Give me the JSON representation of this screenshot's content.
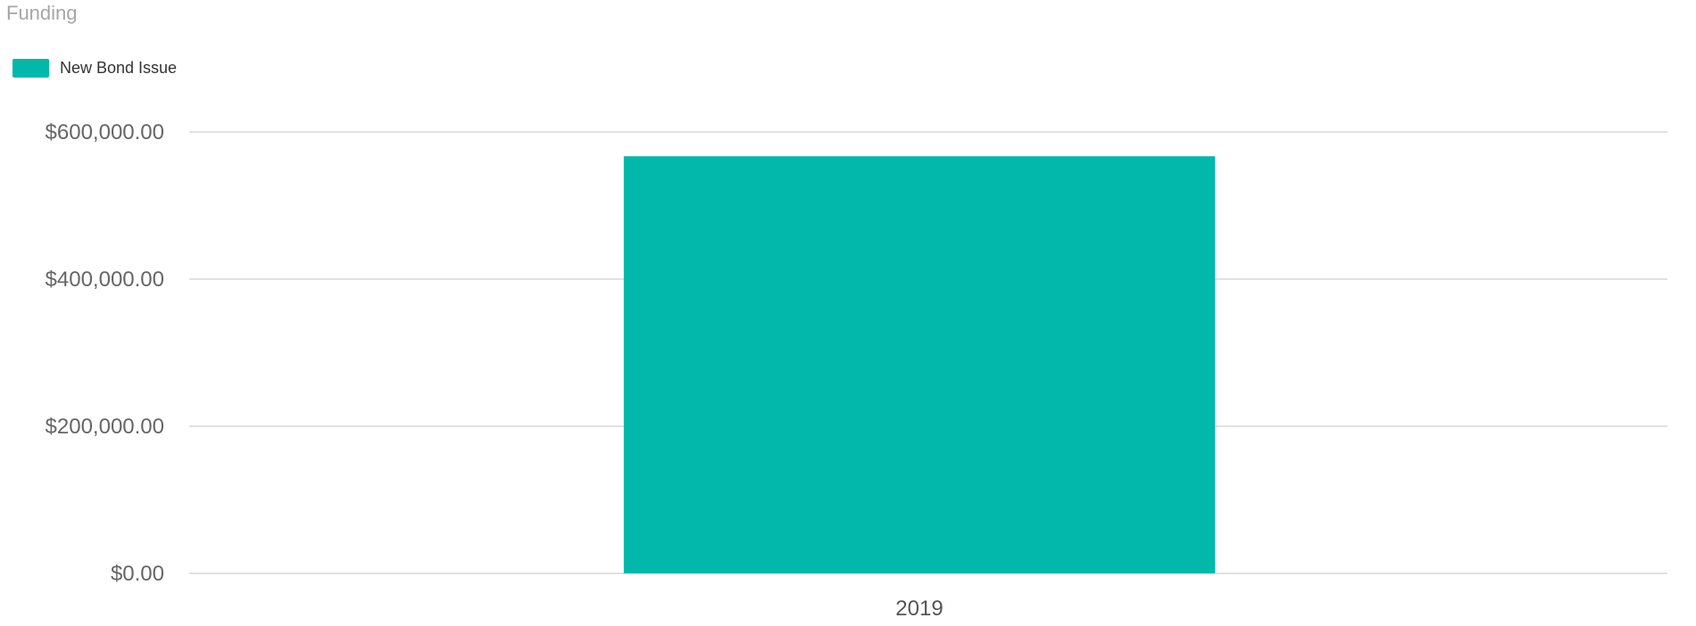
{
  "chart_data": {
    "type": "bar",
    "title": "Funding",
    "categories": [
      "2019"
    ],
    "series": [
      {
        "name": "New Bond Issue",
        "values": [
          567000
        ],
        "color": "#01b8aa"
      }
    ],
    "y_ticks": [
      0,
      200000,
      400000,
      600000
    ],
    "y_tick_labels": [
      "$0.00",
      "$200,000.00",
      "$400,000.00",
      "$600,000.00"
    ],
    "ylim": [
      0,
      600000
    ],
    "grid": true,
    "legend_position": "top-left",
    "colors": {
      "bar": "#01b8aa",
      "grid": "#e1e1e1",
      "title": "#a6a6a6"
    }
  }
}
